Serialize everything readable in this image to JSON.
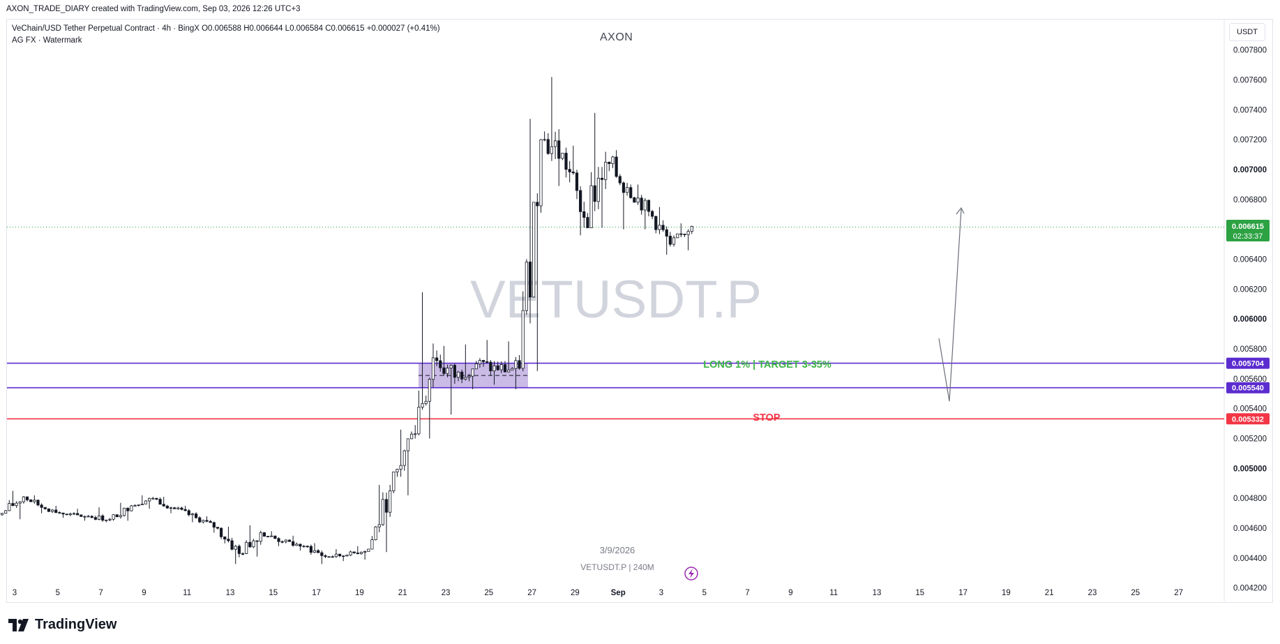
{
  "header": {
    "created_by": "AXON_TRADE_DIARY created with TradingView.com, Sep 03, 2026 12:26 UTC+3",
    "symbol_info": "VeChain/USD Tether Perpetual Contract · 4h · BingX  O0.006588  H0.006644  L0.006584  C0.006615  +0.000027 (+0.41%)",
    "indicator": "AG FX · Watermark",
    "chart_title": "AXON",
    "currency": "USDT"
  },
  "watermark": {
    "symbol": "VETUSDT.P",
    "date": "3/9/2026",
    "sub": "VETUSDT.P  |  240M"
  },
  "annotations": {
    "long_label": "LONG 1%  |  TARGET 3-35%",
    "stop_label": "STOP"
  },
  "price_labels": {
    "current_price": "0.006615",
    "countdown": "02:33:37",
    "zone_top": "0.005704",
    "zone_bottom": "0.005540",
    "stop": "0.005332"
  },
  "colors": {
    "up_candle": "#131722",
    "down_candle": "#131722",
    "zone_line": "#5b2ccf",
    "zone_fill": "#b39ddb",
    "stop_line": "#f23645",
    "current_price": "#2ca243",
    "long_text": "#3db345",
    "stop_text": "#f23645"
  },
  "footer": {
    "brand": "TradingView"
  },
  "chart_data": {
    "type": "candlestick",
    "timeframe": "4h",
    "y_axis_ticks": [
      "0.007800",
      "0.007600",
      "0.007400",
      "0.007200",
      "0.007000",
      "0.006800",
      "0.006600",
      "0.006400",
      "0.006200",
      "0.006000",
      "0.005800",
      "0.005600",
      "0.005400",
      "0.005200",
      "0.005000",
      "0.004800",
      "0.004600",
      "0.004400",
      "0.004200"
    ],
    "ylim": [
      0.00411,
      0.00792
    ],
    "x_axis_ticks": [
      "3",
      "5",
      "7",
      "9",
      "11",
      "13",
      "15",
      "17",
      "19",
      "21",
      "23",
      "25",
      "27",
      "29",
      "Sep",
      "3",
      "5",
      "7",
      "9",
      "11",
      "13",
      "15",
      "17",
      "19",
      "21",
      "23",
      "25",
      "27"
    ],
    "daily_ohlc": [
      {
        "day": "Aug 2",
        "o": 0.00472,
        "h": 0.00476,
        "l": 0.00467,
        "c": 0.0047
      },
      {
        "day": "Aug 3",
        "o": 0.0047,
        "h": 0.00485,
        "l": 0.00466,
        "c": 0.00481
      },
      {
        "day": "Aug 4",
        "o": 0.00481,
        "h": 0.00482,
        "l": 0.0047,
        "c": 0.00473
      },
      {
        "day": "Aug 5",
        "o": 0.00473,
        "h": 0.00475,
        "l": 0.00467,
        "c": 0.00469
      },
      {
        "day": "Aug 6",
        "o": 0.00469,
        "h": 0.00473,
        "l": 0.00465,
        "c": 0.00468
      },
      {
        "day": "Aug 7",
        "o": 0.00468,
        "h": 0.00474,
        "l": 0.00464,
        "c": 0.00466
      },
      {
        "day": "Aug 8",
        "o": 0.00466,
        "h": 0.00477,
        "l": 0.00465,
        "c": 0.00475
      },
      {
        "day": "Aug 9",
        "o": 0.00475,
        "h": 0.00482,
        "l": 0.00473,
        "c": 0.0048
      },
      {
        "day": "Aug 10",
        "o": 0.0048,
        "h": 0.00481,
        "l": 0.0047,
        "c": 0.00473
      },
      {
        "day": "Aug 11",
        "o": 0.00473,
        "h": 0.00475,
        "l": 0.00464,
        "c": 0.00467
      },
      {
        "day": "Aug 12",
        "o": 0.00467,
        "h": 0.00468,
        "l": 0.00457,
        "c": 0.0046
      },
      {
        "day": "Aug 13",
        "o": 0.0046,
        "h": 0.00461,
        "l": 0.00436,
        "c": 0.00443
      },
      {
        "day": "Aug 14",
        "o": 0.00443,
        "h": 0.00462,
        "l": 0.00441,
        "c": 0.00457
      },
      {
        "day": "Aug 15",
        "o": 0.00457,
        "h": 0.00458,
        "l": 0.00448,
        "c": 0.00451
      },
      {
        "day": "Aug 16",
        "o": 0.00451,
        "h": 0.00455,
        "l": 0.00445,
        "c": 0.00448
      },
      {
        "day": "Aug 17",
        "o": 0.00448,
        "h": 0.0045,
        "l": 0.00436,
        "c": 0.00441
      },
      {
        "day": "Aug 18",
        "o": 0.00441,
        "h": 0.00446,
        "l": 0.00438,
        "c": 0.00442
      },
      {
        "day": "Aug 19",
        "o": 0.00442,
        "h": 0.00448,
        "l": 0.00439,
        "c": 0.00446
      },
      {
        "day": "Aug 20",
        "o": 0.00446,
        "h": 0.00489,
        "l": 0.00444,
        "c": 0.00485
      },
      {
        "day": "Aug 21",
        "o": 0.00485,
        "h": 0.00526,
        "l": 0.00482,
        "c": 0.00523
      },
      {
        "day": "Aug 22",
        "o": 0.00523,
        "h": 0.00618,
        "l": 0.0052,
        "c": 0.00574
      },
      {
        "day": "Aug 23",
        "o": 0.00574,
        "h": 0.00582,
        "l": 0.00536,
        "c": 0.00561
      },
      {
        "day": "Aug 24",
        "o": 0.00561,
        "h": 0.00583,
        "l": 0.00553,
        "c": 0.0057
      },
      {
        "day": "Aug 25",
        "o": 0.0057,
        "h": 0.00586,
        "l": 0.00556,
        "c": 0.00566
      },
      {
        "day": "Aug 26",
        "o": 0.00566,
        "h": 0.00585,
        "l": 0.00553,
        "c": 0.00567
      },
      {
        "day": "Aug 27",
        "o": 0.00567,
        "h": 0.00734,
        "l": 0.00565,
        "c": 0.0072
      },
      {
        "day": "Aug 28",
        "o": 0.0072,
        "h": 0.00762,
        "l": 0.00689,
        "c": 0.00711
      },
      {
        "day": "Aug 29",
        "o": 0.00711,
        "h": 0.00716,
        "l": 0.00656,
        "c": 0.00668
      },
      {
        "day": "Aug 30",
        "o": 0.00668,
        "h": 0.00738,
        "l": 0.00661,
        "c": 0.00705
      },
      {
        "day": "Aug 31",
        "o": 0.00705,
        "h": 0.00713,
        "l": 0.0066,
        "c": 0.00688
      },
      {
        "day": "Sep 1",
        "o": 0.00688,
        "h": 0.0069,
        "l": 0.0066,
        "c": 0.00672
      },
      {
        "day": "Sep 2",
        "o": 0.00672,
        "h": 0.00675,
        "l": 0.00643,
        "c": 0.0065
      },
      {
        "day": "Sep 3",
        "o": 0.0065,
        "h": 0.00664,
        "l": 0.00646,
        "c": 0.00662
      }
    ],
    "horizontal_levels": [
      {
        "name": "zone_top",
        "value": 0.005704
      },
      {
        "name": "zone_bottom",
        "value": 0.00554
      },
      {
        "name": "stop",
        "value": 0.005332
      },
      {
        "name": "current_price",
        "value": 0.006615
      }
    ]
  }
}
